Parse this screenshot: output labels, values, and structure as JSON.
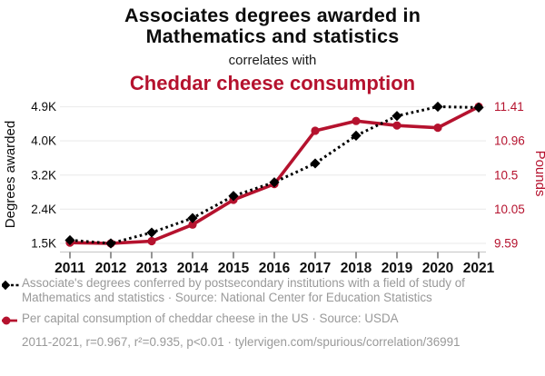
{
  "header": {
    "title_line1": "Associates degrees awarded in",
    "title_line2": "Mathematics and statistics",
    "connector": "correlates with",
    "secondary_title": "Cheddar cheese consumption"
  },
  "colors": {
    "red": "#b5122e",
    "black": "#000000",
    "axis_text": "#0c0c0c",
    "gray_text": "#999999",
    "gridline": "#ededed",
    "baseline": "#cccccc",
    "tick": "#666666"
  },
  "chart_data": {
    "type": "line",
    "x": [
      "2011",
      "2012",
      "2013",
      "2014",
      "2015",
      "2016",
      "2017",
      "2018",
      "2019",
      "2020",
      "2021"
    ],
    "series": [
      {
        "name": "Associates degrees awarded in Mathematics and statistics",
        "axis": "left",
        "style": "dotted",
        "marker": "diamond",
        "color": "#000000",
        "values": [
          1580,
          1500,
          1770,
          2130,
          2680,
          3020,
          3490,
          4180,
          4670,
          4900,
          4880
        ]
      },
      {
        "name": "Cheddar cheese consumption",
        "axis": "right",
        "style": "solid",
        "marker": "circle",
        "color": "#b5122e",
        "values": [
          9.6,
          9.59,
          9.62,
          9.84,
          10.17,
          10.38,
          11.09,
          11.22,
          11.16,
          11.13,
          11.41
        ]
      }
    ],
    "left_axis": {
      "label": "Degrees awarded",
      "ticks": [
        "1.5K",
        "2.4K",
        "3.2K",
        "4.0K",
        "4.9K"
      ],
      "range": [
        1500,
        4900
      ]
    },
    "right_axis": {
      "label": "Pounds",
      "ticks": [
        "9.59",
        "10.05",
        "10.5",
        "10.96",
        "11.41"
      ],
      "range": [
        9.59,
        11.41
      ]
    },
    "grid": true,
    "legend_position": "bottom"
  },
  "legend": {
    "series1_label": "Associate's degrees conferred by postsecondary institutions with a field of study of Mathematics and statistics · Source: National Center for Education Statistics",
    "series2_label": "Per capital consumption of cheddar cheese in the US · Source: USDA",
    "stats_line": "2011-2021, r=0.967, r²=0.935, p<0.01 · tylervigen.com/spurious/correlation/36991"
  }
}
